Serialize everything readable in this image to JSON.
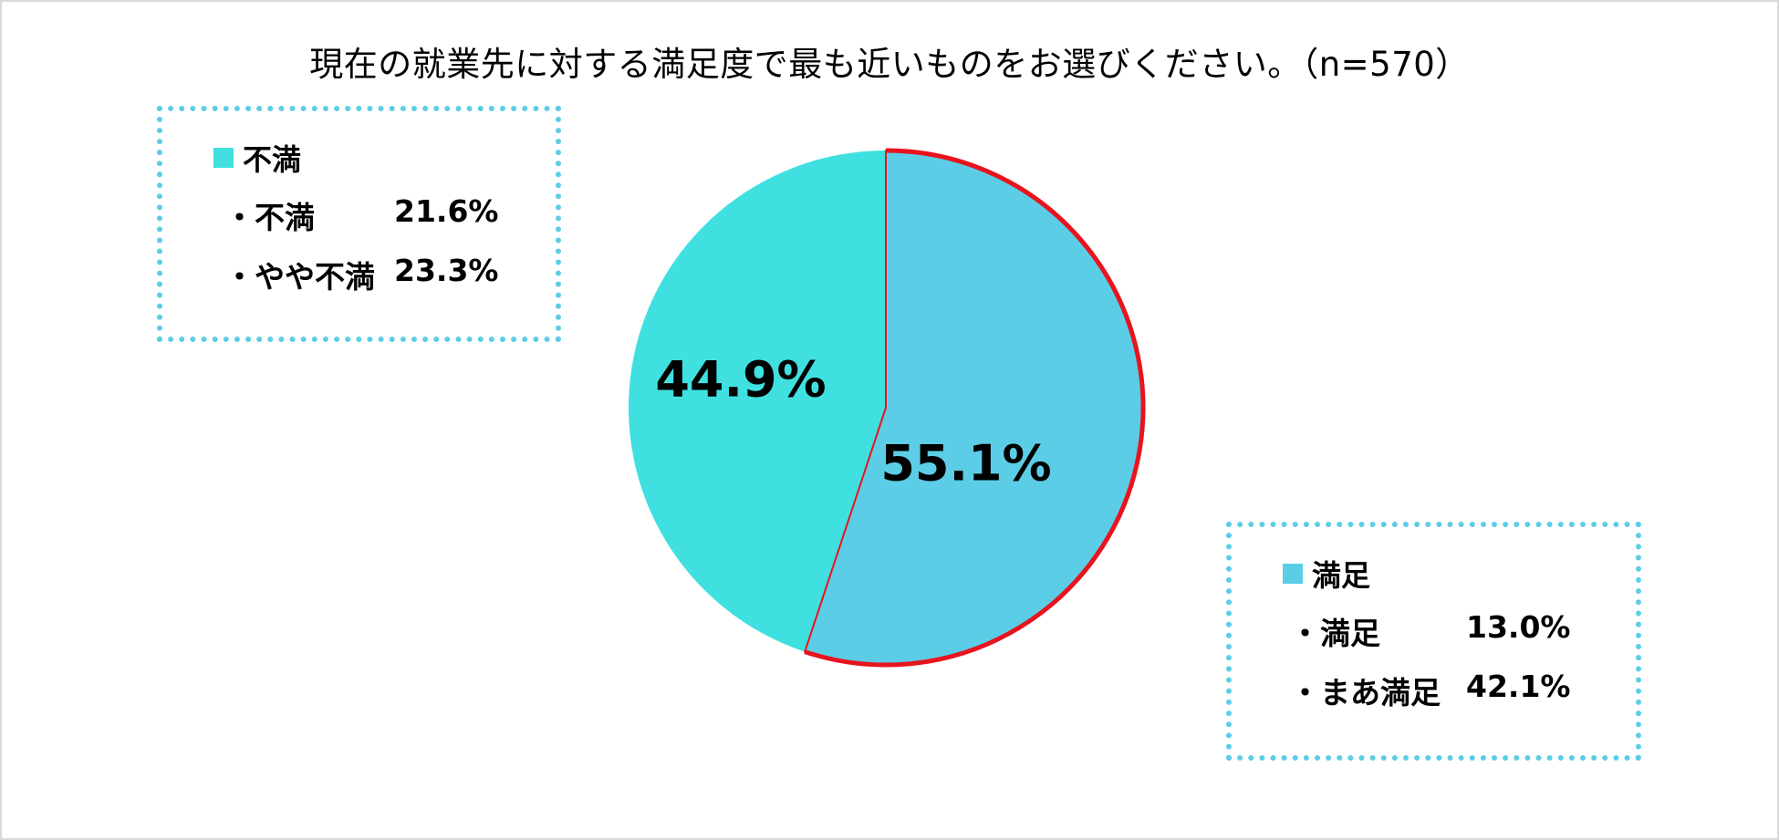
{
  "title": "現在の就業先に対する満足度で最も近いものをお選びください。（n=570）",
  "chart_data": {
    "type": "pie",
    "title": "現在の就業先に対する満足度で最も近いものをお選びください。（n=570）",
    "slices": [
      {
        "label": "満足",
        "value": 55.1,
        "display": "55.1%",
        "color": "#5ccde6",
        "outline": "#e8141d"
      },
      {
        "label": "不満",
        "value": 44.9,
        "display": "44.9%",
        "color": "#40e0e0"
      }
    ],
    "start_angle_deg": 0,
    "direction": "clockwise"
  },
  "legend_dissatisfied": {
    "header": "不満",
    "swatch_color": "#40e0e0",
    "rows": [
      {
        "label": "・不満",
        "value": "21.6%"
      },
      {
        "label": "・やや不満",
        "value": "23.3%"
      }
    ]
  },
  "legend_satisfied": {
    "header": "満足",
    "swatch_color": "#5ccde6",
    "rows": [
      {
        "label": "・満足",
        "value": "13.0%"
      },
      {
        "label": "・まあ満足",
        "value": "42.1%"
      }
    ]
  }
}
